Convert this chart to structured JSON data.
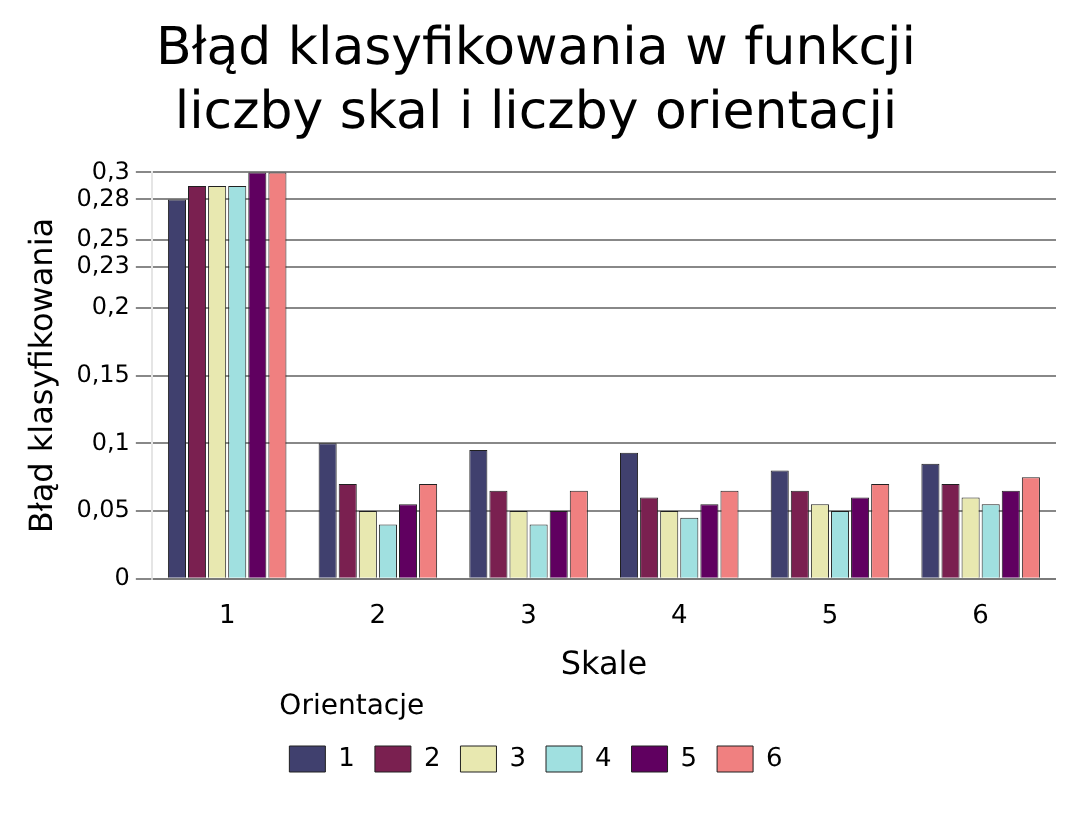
{
  "chart_data": {
    "type": "bar",
    "title": "Błąd klasyfikowania w funkcji liczby skal i liczby orientacji",
    "xlabel": "Skale",
    "ylabel": "Błąd klasyfikowania",
    "legend_title": "Orientacje",
    "categories": [
      "1",
      "2",
      "3",
      "4",
      "5",
      "6"
    ],
    "series": [
      {
        "name": "1",
        "color": "#40406e",
        "values": [
          0.28,
          0.1,
          0.095,
          0.093,
          0.08,
          0.085
        ]
      },
      {
        "name": "2",
        "color": "#7a2050",
        "values": [
          0.29,
          0.07,
          0.065,
          0.06,
          0.065,
          0.07
        ]
      },
      {
        "name": "3",
        "color": "#e8e8b0",
        "values": [
          0.29,
          0.05,
          0.05,
          0.05,
          0.055,
          0.06
        ]
      },
      {
        "name": "4",
        "color": "#a0e0e0",
        "values": [
          0.29,
          0.04,
          0.04,
          0.045,
          0.05,
          0.055
        ]
      },
      {
        "name": "5",
        "color": "#600060",
        "values": [
          0.3,
          0.055,
          0.05,
          0.055,
          0.06,
          0.065
        ]
      },
      {
        "name": "6",
        "color": "#f08080",
        "values": [
          0.3,
          0.07,
          0.065,
          0.065,
          0.07,
          0.075
        ]
      }
    ],
    "ylim": [
      0,
      0.3
    ],
    "yticks": [
      {
        "value": 0,
        "label": "0"
      },
      {
        "value": 0.05,
        "label": "0,05"
      },
      {
        "value": 0.1,
        "label": "0,1"
      },
      {
        "value": 0.15,
        "label": "0,15"
      },
      {
        "value": 0.2,
        "label": "0,2"
      },
      {
        "value": 0.23,
        "label": "0,23"
      },
      {
        "value": 0.25,
        "label": "0,25"
      },
      {
        "value": 0.28,
        "label": "0,28"
      },
      {
        "value": 0.3,
        "label": "0,3"
      }
    ],
    "grid": "y",
    "legend": "bottom"
  }
}
